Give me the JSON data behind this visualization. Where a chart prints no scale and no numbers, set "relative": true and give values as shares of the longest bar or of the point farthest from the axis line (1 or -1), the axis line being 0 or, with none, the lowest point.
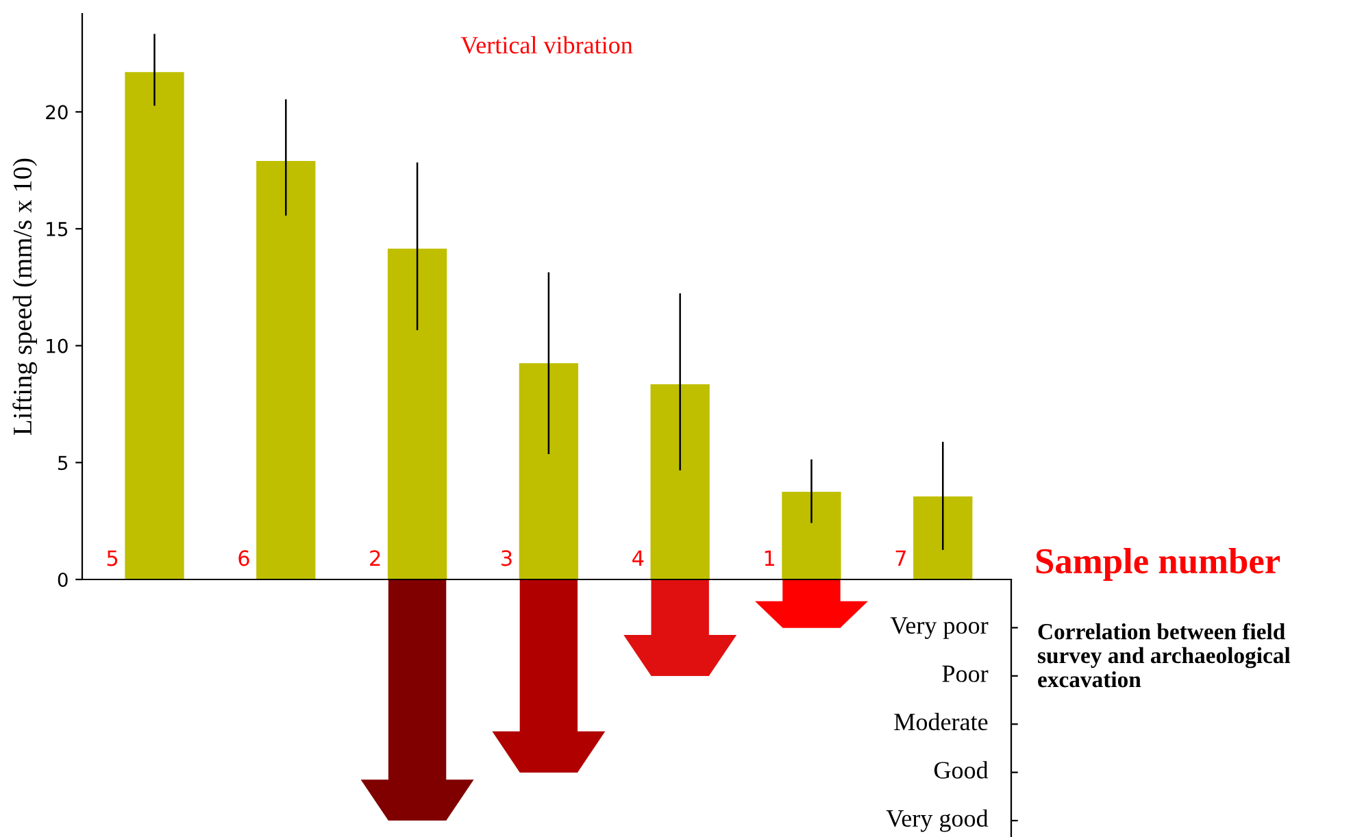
{
  "chart_data": [
    {
      "type": "bar",
      "categories": [
        "5",
        "6",
        "2",
        "3",
        "4",
        "1",
        "7"
      ],
      "values": [
        21.7,
        17.9,
        14.15,
        9.25,
        8.35,
        3.75,
        3.55
      ],
      "errors": [
        [
          20.3,
          23.3
        ],
        [
          15.6,
          20.5
        ],
        [
          10.7,
          17.8
        ],
        [
          5.4,
          13.1
        ],
        [
          4.7,
          12.2
        ],
        [
          2.45,
          5.1
        ],
        [
          1.3,
          5.85
        ]
      ],
      "color": "#bfbf00",
      "ylabel": "Lifting speed (mm/s x 10)",
      "ylim": [
        0,
        24.2
      ],
      "yticks": [
        0,
        5,
        10,
        15,
        20
      ],
      "tick_labels": "y",
      "grid": false,
      "annotations": [
        "Vertical vibration",
        "Sample number"
      ]
    },
    {
      "type": "bar",
      "categories": [
        null,
        null,
        null,
        null,
        null,
        null,
        null
      ],
      "values": [
        null,
        null,
        -1,
        -0.8,
        -0.4,
        -0.2,
        null
      ],
      "relative": true,
      "colors": [
        null,
        null,
        "#800000",
        "#b00000",
        "#e01010",
        "#ff0000",
        null
      ],
      "grid": false,
      "annotations": [
        "Correlation between field survey and archaeological excavation",
        "Very poor",
        "Poor",
        "Moderate",
        "Good",
        "Very good"
      ]
    }
  ]
}
